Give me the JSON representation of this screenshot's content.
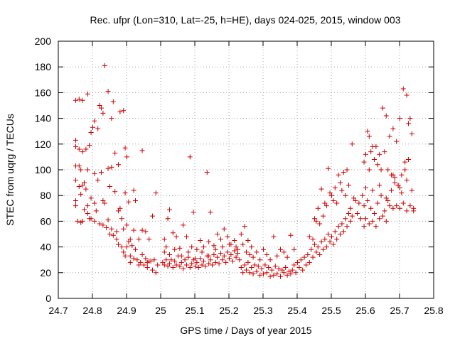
{
  "chart_data": {
    "type": "scatter",
    "title": "Rec. ufpr (Lon=310, Lat=-25, h=HE), days 024-025, 2015, window 003",
    "xlabel": "GPS time / Days of year 2015",
    "ylabel": "STEC from uqrg / TECUs",
    "xlim": [
      24.7,
      25.8
    ],
    "ylim": [
      0,
      200
    ],
    "xticks": [
      "24.7",
      "24.8",
      "24.9",
      "25",
      "25.1",
      "25.2",
      "25.3",
      "25.4",
      "25.5",
      "25.6",
      "25.7",
      "25.8"
    ],
    "yticks": [
      "0",
      "20",
      "40",
      "60",
      "80",
      "100",
      "120",
      "140",
      "160",
      "180",
      "200"
    ],
    "grid": true,
    "marker": "plus",
    "color": "#cc0000",
    "points": [
      [
        24.751,
        154
      ],
      [
        24.761,
        155
      ],
      [
        24.771,
        154
      ],
      [
        24.786,
        159
      ],
      [
        24.821,
        150
      ],
      [
        24.826,
        148
      ],
      [
        24.836,
        181
      ],
      [
        24.846,
        161
      ],
      [
        24.861,
        153
      ],
      [
        24.881,
        145
      ],
      [
        24.891,
        146
      ],
      [
        24.751,
        123
      ],
      [
        24.751,
        118
      ],
      [
        24.761,
        116
      ],
      [
        24.771,
        114
      ],
      [
        24.781,
        116
      ],
      [
        24.791,
        119
      ],
      [
        24.796,
        129
      ],
      [
        24.801,
        133
      ],
      [
        24.806,
        138
      ],
      [
        24.816,
        132
      ],
      [
        24.831,
        144
      ],
      [
        24.856,
        140
      ],
      [
        24.866,
        113
      ],
      [
        24.896,
        117
      ],
      [
        24.901,
        110
      ],
      [
        24.946,
        115
      ],
      [
        24.751,
        103
      ],
      [
        24.761,
        103
      ],
      [
        24.766,
        100
      ],
      [
        24.776,
        90
      ],
      [
        24.786,
        100
      ],
      [
        24.806,
        97
      ],
      [
        24.816,
        92
      ],
      [
        24.826,
        98
      ],
      [
        24.846,
        101
      ],
      [
        24.856,
        102
      ],
      [
        24.876,
        104
      ],
      [
        24.896,
        82
      ],
      [
        24.921,
        84
      ],
      [
        24.751,
        92
      ],
      [
        24.761,
        87
      ],
      [
        24.766,
        81
      ],
      [
        24.771,
        88
      ],
      [
        24.781,
        85
      ],
      [
        24.786,
        72
      ],
      [
        24.796,
        78
      ],
      [
        24.806,
        74
      ],
      [
        24.811,
        68
      ],
      [
        24.831,
        76
      ],
      [
        24.836,
        74
      ],
      [
        24.851,
        87
      ],
      [
        24.866,
        83
      ],
      [
        24.876,
        68
      ],
      [
        24.906,
        75
      ],
      [
        24.926,
        76
      ],
      [
        24.986,
        82
      ],
      [
        24.751,
        76
      ],
      [
        24.751,
        72
      ],
      [
        24.756,
        60
      ],
      [
        24.766,
        59
      ],
      [
        24.771,
        60
      ],
      [
        24.776,
        69
      ],
      [
        24.786,
        66
      ],
      [
        24.791,
        62
      ],
      [
        24.796,
        62
      ],
      [
        24.806,
        60
      ],
      [
        24.821,
        58
      ],
      [
        24.831,
        57
      ],
      [
        24.846,
        61
      ],
      [
        24.856,
        54
      ],
      [
        24.871,
        52
      ],
      [
        24.881,
        70
      ],
      [
        24.886,
        62
      ],
      [
        24.891,
        54
      ],
      [
        24.901,
        57
      ],
      [
        24.911,
        46
      ],
      [
        24.921,
        53
      ],
      [
        24.936,
        46
      ],
      [
        24.946,
        53
      ],
      [
        24.956,
        52
      ],
      [
        24.966,
        46
      ],
      [
        24.976,
        64
      ],
      [
        24.841,
        55
      ],
      [
        24.851,
        50
      ],
      [
        24.861,
        49
      ],
      [
        24.871,
        46
      ],
      [
        24.876,
        42
      ],
      [
        24.886,
        40
      ],
      [
        24.891,
        36
      ],
      [
        24.896,
        33
      ],
      [
        24.901,
        40
      ],
      [
        24.906,
        44
      ],
      [
        24.911,
        33
      ],
      [
        24.916,
        41
      ],
      [
        24.921,
        31
      ],
      [
        24.926,
        38
      ],
      [
        24.931,
        30
      ],
      [
        24.941,
        28
      ],
      [
        24.946,
        34
      ],
      [
        24.951,
        26
      ],
      [
        24.956,
        31
      ],
      [
        24.961,
        24
      ],
      [
        24.966,
        29
      ],
      [
        24.971,
        29
      ],
      [
        24.976,
        22
      ],
      [
        24.981,
        30
      ],
      [
        24.986,
        20
      ],
      [
        24.991,
        26
      ],
      [
        24.911,
        28
      ],
      [
        24.936,
        26
      ],
      [
        24.961,
        28
      ],
      [
        25.011,
        46
      ],
      [
        25.016,
        40
      ],
      [
        25.021,
        62
      ],
      [
        25.026,
        69
      ],
      [
        25.036,
        51
      ],
      [
        25.046,
        48
      ],
      [
        25.056,
        39
      ],
      [
        25.066,
        57
      ],
      [
        25.076,
        48
      ],
      [
        25.086,
        110
      ],
      [
        25.091,
        40
      ],
      [
        25.096,
        67
      ],
      [
        25.106,
        38
      ],
      [
        25.116,
        45
      ],
      [
        25.126,
        40
      ],
      [
        25.136,
        98
      ],
      [
        25.141,
        44
      ],
      [
        25.146,
        67
      ],
      [
        25.156,
        41
      ],
      [
        25.166,
        50
      ],
      [
        25.176,
        46
      ],
      [
        25.186,
        54
      ],
      [
        25.196,
        48
      ],
      [
        25.206,
        42
      ],
      [
        25.216,
        45
      ],
      [
        25.226,
        38
      ],
      [
        25.236,
        50
      ],
      [
        25.246,
        56
      ],
      [
        25.256,
        45
      ],
      [
        25.266,
        40
      ],
      [
        25.006,
        28
      ],
      [
        25.011,
        26
      ],
      [
        25.016,
        30
      ],
      [
        25.021,
        25
      ],
      [
        25.026,
        27
      ],
      [
        25.031,
        30
      ],
      [
        25.036,
        24
      ],
      [
        25.041,
        29
      ],
      [
        25.046,
        26
      ],
      [
        25.051,
        33
      ],
      [
        25.056,
        25
      ],
      [
        25.061,
        28
      ],
      [
        25.066,
        23
      ],
      [
        25.071,
        30
      ],
      [
        25.076,
        26
      ],
      [
        25.081,
        32
      ],
      [
        25.086,
        24
      ],
      [
        25.091,
        27
      ],
      [
        25.096,
        30
      ],
      [
        25.101,
        25
      ],
      [
        25.106,
        28
      ],
      [
        25.111,
        24
      ],
      [
        25.116,
        31
      ],
      [
        25.121,
        26
      ],
      [
        25.126,
        29
      ],
      [
        25.131,
        25
      ],
      [
        25.136,
        33
      ],
      [
        25.141,
        27
      ],
      [
        25.146,
        30
      ],
      [
        25.151,
        26
      ],
      [
        25.156,
        34
      ],
      [
        25.161,
        28
      ],
      [
        25.166,
        32
      ],
      [
        25.171,
        27
      ],
      [
        25.176,
        35
      ],
      [
        25.181,
        30
      ],
      [
        25.186,
        33
      ],
      [
        25.191,
        28
      ],
      [
        25.196,
        36
      ],
      [
        25.201,
        31
      ],
      [
        25.206,
        34
      ],
      [
        25.211,
        29
      ],
      [
        25.216,
        37
      ],
      [
        25.221,
        32
      ],
      [
        25.226,
        35
      ],
      [
        25.231,
        30
      ],
      [
        25.011,
        36
      ],
      [
        25.026,
        34
      ],
      [
        25.041,
        38
      ],
      [
        25.061,
        33
      ],
      [
        25.081,
        36
      ],
      [
        25.101,
        31
      ],
      [
        25.121,
        36
      ],
      [
        25.141,
        33
      ],
      [
        25.161,
        38
      ],
      [
        25.181,
        40
      ],
      [
        25.201,
        42
      ],
      [
        25.221,
        40
      ],
      [
        25.241,
        42
      ],
      [
        25.236,
        24
      ],
      [
        25.241,
        20
      ],
      [
        25.246,
        26
      ],
      [
        25.251,
        22
      ],
      [
        25.256,
        28
      ],
      [
        25.261,
        20
      ],
      [
        25.266,
        24
      ],
      [
        25.271,
        19
      ],
      [
        25.276,
        26
      ],
      [
        25.281,
        21
      ],
      [
        25.286,
        25
      ],
      [
        25.291,
        18
      ],
      [
        25.296,
        23
      ],
      [
        25.301,
        19
      ],
      [
        25.306,
        26
      ],
      [
        25.311,
        20
      ],
      [
        25.316,
        24
      ],
      [
        25.321,
        17
      ],
      [
        25.326,
        22
      ],
      [
        25.331,
        18
      ],
      [
        25.336,
        25
      ],
      [
        25.341,
        19
      ],
      [
        25.346,
        23
      ],
      [
        25.351,
        17
      ],
      [
        25.356,
        22
      ],
      [
        25.361,
        20
      ],
      [
        25.366,
        24
      ],
      [
        25.371,
        18
      ],
      [
        25.376,
        21
      ],
      [
        25.381,
        19
      ],
      [
        25.251,
        36
      ],
      [
        25.261,
        34
      ],
      [
        25.271,
        32
      ],
      [
        25.281,
        36
      ],
      [
        25.291,
        30
      ],
      [
        25.301,
        38
      ],
      [
        25.311,
        34
      ],
      [
        25.321,
        30
      ],
      [
        25.331,
        48
      ],
      [
        25.341,
        33
      ],
      [
        25.351,
        38
      ],
      [
        25.361,
        36
      ],
      [
        25.371,
        32
      ],
      [
        25.381,
        49
      ],
      [
        25.391,
        38
      ],
      [
        25.386,
        22
      ],
      [
        25.391,
        26
      ],
      [
        25.396,
        20
      ],
      [
        25.401,
        28
      ],
      [
        25.406,
        24
      ],
      [
        25.411,
        30
      ],
      [
        25.416,
        22
      ],
      [
        25.421,
        32
      ],
      [
        25.426,
        26
      ],
      [
        25.431,
        34
      ],
      [
        25.436,
        28
      ],
      [
        25.441,
        38
      ],
      [
        25.446,
        32
      ],
      [
        25.451,
        42
      ],
      [
        25.456,
        36
      ],
      [
        25.461,
        40
      ],
      [
        25.466,
        34
      ],
      [
        25.471,
        44
      ],
      [
        25.476,
        38
      ],
      [
        25.481,
        46
      ],
      [
        25.486,
        40
      ],
      [
        25.491,
        50
      ],
      [
        25.496,
        44
      ],
      [
        25.501,
        48
      ],
      [
        25.506,
        42
      ],
      [
        25.511,
        52
      ],
      [
        25.516,
        46
      ],
      [
        25.521,
        56
      ],
      [
        25.526,
        50
      ],
      [
        25.531,
        58
      ],
      [
        25.536,
        52
      ],
      [
        25.541,
        62
      ],
      [
        25.546,
        56
      ],
      [
        25.551,
        66
      ],
      [
        25.556,
        60
      ],
      [
        25.561,
        64
      ],
      [
        25.436,
        48
      ],
      [
        25.446,
        46
      ],
      [
        25.451,
        62
      ],
      [
        25.456,
        60
      ],
      [
        25.461,
        70
      ],
      [
        25.466,
        58
      ],
      [
        25.471,
        85
      ],
      [
        25.476,
        64
      ],
      [
        25.481,
        74
      ],
      [
        25.486,
        72
      ],
      [
        25.491,
        101
      ],
      [
        25.496,
        82
      ],
      [
        25.501,
        80
      ],
      [
        25.506,
        76
      ],
      [
        25.511,
        86
      ],
      [
        25.516,
        74
      ],
      [
        25.521,
        96
      ],
      [
        25.526,
        90
      ],
      [
        25.531,
        84
      ],
      [
        25.536,
        98
      ],
      [
        25.541,
        80
      ],
      [
        25.546,
        100
      ],
      [
        25.551,
        88
      ],
      [
        25.556,
        70
      ],
      [
        25.561,
        120
      ],
      [
        25.566,
        78
      ],
      [
        25.571,
        76
      ],
      [
        25.576,
        66
      ],
      [
        25.581,
        74
      ],
      [
        25.586,
        62
      ],
      [
        25.591,
        80
      ],
      [
        25.596,
        106
      ],
      [
        25.601,
        112
      ],
      [
        25.606,
        130
      ],
      [
        25.611,
        126
      ],
      [
        25.616,
        114
      ],
      [
        25.621,
        118
      ],
      [
        25.626,
        108
      ],
      [
        25.631,
        118
      ],
      [
        25.636,
        104
      ],
      [
        25.641,
        112
      ],
      [
        25.646,
        100
      ],
      [
        25.651,
        148
      ],
      [
        25.656,
        114
      ],
      [
        25.661,
        142
      ],
      [
        25.666,
        100
      ],
      [
        25.671,
        126
      ],
      [
        25.676,
        96
      ],
      [
        25.681,
        132
      ],
      [
        25.686,
        94
      ],
      [
        25.691,
        122
      ],
      [
        25.696,
        88
      ],
      [
        25.701,
        140
      ],
      [
        25.706,
        82
      ],
      [
        25.711,
        163
      ],
      [
        25.716,
        106
      ],
      [
        25.721,
        158
      ],
      [
        25.726,
        136
      ],
      [
        25.731,
        140
      ],
      [
        25.736,
        128
      ],
      [
        25.596,
        72
      ],
      [
        25.601,
        62
      ],
      [
        25.606,
        76
      ],
      [
        25.611,
        58
      ],
      [
        25.616,
        70
      ],
      [
        25.621,
        60
      ],
      [
        25.626,
        66
      ],
      [
        25.631,
        56
      ],
      [
        25.636,
        74
      ],
      [
        25.641,
        62
      ],
      [
        25.646,
        80
      ],
      [
        25.651,
        64
      ],
      [
        25.656,
        68
      ],
      [
        25.661,
        60
      ],
      [
        25.666,
        76
      ],
      [
        25.671,
        72
      ],
      [
        25.676,
        84
      ],
      [
        25.681,
        70
      ],
      [
        25.686,
        90
      ],
      [
        25.691,
        72
      ],
      [
        25.696,
        88
      ],
      [
        25.701,
        70
      ],
      [
        25.706,
        96
      ],
      [
        25.711,
        74
      ],
      [
        25.716,
        100
      ],
      [
        25.721,
        68
      ],
      [
        25.726,
        108
      ],
      [
        25.731,
        72
      ],
      [
        25.736,
        84
      ],
      [
        25.741,
        70
      ],
      [
        25.601,
        86
      ],
      [
        25.611,
        100
      ],
      [
        25.621,
        84
      ],
      [
        25.641,
        88
      ],
      [
        25.661,
        78
      ],
      [
        25.681,
        96
      ],
      [
        25.701,
        86
      ],
      [
        25.721,
        92
      ],
      [
        25.741,
        68
      ],
      [
        25.596,
        56
      ]
    ]
  }
}
